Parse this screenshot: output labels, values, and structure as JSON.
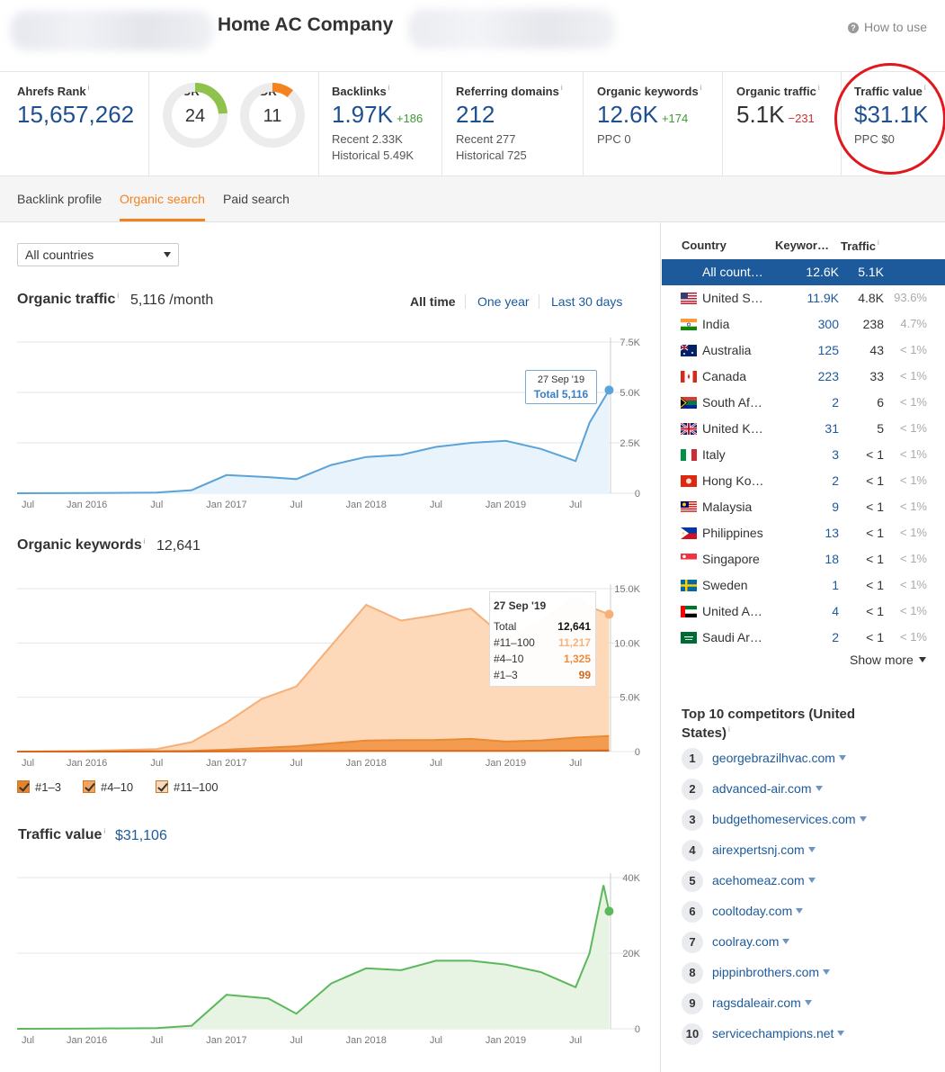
{
  "header": {
    "title": "Home AC Company",
    "how_to_use": "How to use"
  },
  "metrics": {
    "ahrefs_rank": {
      "label": "Ahrefs Rank",
      "value": "15,657,262"
    },
    "ur": {
      "label": "UR",
      "value": "24"
    },
    "dr": {
      "label": "DR",
      "value": "11"
    },
    "backlinks": {
      "label": "Backlinks",
      "value": "1.97K",
      "delta": "+186",
      "recent": "Recent 2.33K",
      "historical": "Historical 5.49K"
    },
    "ref_domains": {
      "label": "Referring domains",
      "value": "212",
      "recent": "Recent 277",
      "historical": "Historical 725"
    },
    "organic_keywords": {
      "label": "Organic keywords",
      "value": "12.6K",
      "delta": "+174",
      "ppc": "PPC 0"
    },
    "organic_traffic": {
      "label": "Organic traffic",
      "value": "5.1K",
      "delta": "−231"
    },
    "traffic_value": {
      "label": "Traffic value",
      "value": "$31.1K",
      "ppc": "PPC $0"
    }
  },
  "tabs": [
    "Backlink profile",
    "Organic search",
    "Paid search"
  ],
  "filters": {
    "country_select": "All countries",
    "time": [
      "All time",
      "One year",
      "Last 30 days"
    ]
  },
  "sections": {
    "organic_traffic": {
      "title": "Organic traffic",
      "value": "5,116 /month"
    },
    "organic_keywords": {
      "title": "Organic keywords",
      "value": "12,641"
    },
    "traffic_value": {
      "title": "Traffic value",
      "value": "$31,106"
    }
  },
  "tooltip_traffic": {
    "date": "27 Sep '19",
    "total": "Total 5,116"
  },
  "tooltip_keywords": {
    "date": "27 Sep '19",
    "rows": [
      {
        "label": "Total",
        "value": "12,641"
      },
      {
        "label": "#11–100",
        "value": "11,217"
      },
      {
        "label": "#4–10",
        "value": "1,325"
      },
      {
        "label": "#1–3",
        "value": "99"
      }
    ]
  },
  "legend": [
    "#1–3",
    "#4–10",
    "#11–100"
  ],
  "chart_data": [
    {
      "type": "area",
      "title": "Organic traffic",
      "x_ticks": [
        "Jul",
        "Jan 2016",
        "Jul",
        "Jan 2017",
        "Jul",
        "Jan 2018",
        "Jul",
        "Jan 2019",
        "Jul"
      ],
      "y_ticks": [
        "0",
        "2.5K",
        "5.0K",
        "7.5K"
      ],
      "ylim": [
        0,
        7500
      ],
      "x": [
        2015.5,
        2016.0,
        2016.5,
        2016.75,
        2017.0,
        2017.3,
        2017.5,
        2017.75,
        2018.0,
        2018.25,
        2018.5,
        2018.75,
        2019.0,
        2019.25,
        2019.5,
        2019.6,
        2019.74
      ],
      "series": [
        {
          "values": [
            0,
            10,
            30,
            150,
            900,
            800,
            700,
            1400,
            1800,
            1900,
            2300,
            2500,
            2600,
            2200,
            1600,
            3500,
            5116
          ]
        }
      ],
      "color": "#5ba3d8"
    },
    {
      "type": "area",
      "title": "Organic keywords",
      "x_ticks": [
        "Jul",
        "Jan 2016",
        "Jul",
        "Jan 2017",
        "Jul",
        "Jan 2018",
        "Jul",
        "Jan 2019",
        "Jul"
      ],
      "y_ticks": [
        "0",
        "5.0K",
        "10.0K",
        "15.0K"
      ],
      "ylim": [
        0,
        15000
      ],
      "x": [
        2015.5,
        2016.0,
        2016.5,
        2016.75,
        2017.0,
        2017.25,
        2017.5,
        2017.75,
        2018.0,
        2018.25,
        2018.5,
        2018.75,
        2019.0,
        2019.25,
        2019.5,
        2019.6,
        2019.74
      ],
      "series": [
        {
          "name": "#11–100",
          "values": [
            0,
            50,
            200,
            800,
            2500,
            4500,
            5500,
            9000,
            12500,
            11000,
            11500,
            12000,
            9500,
            11000,
            13000,
            12000,
            11217
          ]
        },
        {
          "name": "#4–10",
          "values": [
            0,
            10,
            30,
            60,
            150,
            300,
            450,
            700,
            950,
            1000,
            1000,
            1100,
            850,
            950,
            1200,
            1250,
            1325
          ]
        },
        {
          "name": "#1–3",
          "values": [
            0,
            0,
            5,
            10,
            20,
            30,
            40,
            50,
            60,
            60,
            65,
            70,
            70,
            75,
            85,
            95,
            99
          ]
        }
      ]
    },
    {
      "type": "area",
      "title": "Traffic value",
      "x_ticks": [
        "Jul",
        "Jan 2016",
        "Jul",
        "Jan 2017",
        "Jul",
        "Jan 2018",
        "Jul",
        "Jan 2019",
        "Jul"
      ],
      "y_ticks": [
        "0",
        "20K",
        "40K"
      ],
      "ylim": [
        0,
        40000
      ],
      "x": [
        2015.5,
        2016.0,
        2016.5,
        2016.75,
        2017.0,
        2017.3,
        2017.5,
        2017.75,
        2018.0,
        2018.25,
        2018.5,
        2018.75,
        2019.0,
        2019.25,
        2019.5,
        2019.6,
        2019.7,
        2019.74
      ],
      "series": [
        {
          "values": [
            0,
            50,
            200,
            800,
            9000,
            8000,
            4000,
            12000,
            16000,
            15500,
            18000,
            18000,
            17000,
            15000,
            11000,
            20000,
            38000,
            31106
          ]
        }
      ],
      "color": "#5cb85c"
    }
  ],
  "country_table": {
    "headers": [
      "Country",
      "Keywor…",
      "Traffic"
    ],
    "rows": [
      {
        "name": "All count…",
        "kw": "12.6K",
        "traffic": "5.1K",
        "pct": "",
        "flag": "none",
        "selected": true
      },
      {
        "name": "United S…",
        "kw": "11.9K",
        "traffic": "4.8K",
        "pct": "93.6%",
        "flag": "us"
      },
      {
        "name": "India",
        "kw": "300",
        "traffic": "238",
        "pct": "4.7%",
        "flag": "in"
      },
      {
        "name": "Australia",
        "kw": "125",
        "traffic": "43",
        "pct": "< 1%",
        "flag": "au"
      },
      {
        "name": "Canada",
        "kw": "223",
        "traffic": "33",
        "pct": "< 1%",
        "flag": "ca"
      },
      {
        "name": "South Af…",
        "kw": "2",
        "traffic": "6",
        "pct": "< 1%",
        "flag": "za"
      },
      {
        "name": "United K…",
        "kw": "31",
        "traffic": "5",
        "pct": "< 1%",
        "flag": "gb"
      },
      {
        "name": "Italy",
        "kw": "3",
        "traffic": "< 1",
        "pct": "< 1%",
        "flag": "it"
      },
      {
        "name": "Hong Ko…",
        "kw": "2",
        "traffic": "< 1",
        "pct": "< 1%",
        "flag": "hk"
      },
      {
        "name": "Malaysia",
        "kw": "9",
        "traffic": "< 1",
        "pct": "< 1%",
        "flag": "my"
      },
      {
        "name": "Philippines",
        "kw": "13",
        "traffic": "< 1",
        "pct": "< 1%",
        "flag": "ph"
      },
      {
        "name": "Singapore",
        "kw": "18",
        "traffic": "< 1",
        "pct": "< 1%",
        "flag": "sg"
      },
      {
        "name": "Sweden",
        "kw": "1",
        "traffic": "< 1",
        "pct": "< 1%",
        "flag": "se"
      },
      {
        "name": "United A…",
        "kw": "4",
        "traffic": "< 1",
        "pct": "< 1%",
        "flag": "ae"
      },
      {
        "name": "Saudi Ar…",
        "kw": "2",
        "traffic": "< 1",
        "pct": "< 1%",
        "flag": "sa"
      }
    ],
    "show_more": "Show more"
  },
  "competitors": {
    "title": "Top 10 competitors (United States)",
    "items": [
      {
        "num": "1",
        "domain": "georgebrazilhvac.com"
      },
      {
        "num": "2",
        "domain": "advanced-air.com"
      },
      {
        "num": "3",
        "domain": "budgethomeservices.com"
      },
      {
        "num": "4",
        "domain": "airexpertsnj.com"
      },
      {
        "num": "5",
        "domain": "acehomeaz.com"
      },
      {
        "num": "6",
        "domain": "cooltoday.com"
      },
      {
        "num": "7",
        "domain": "coolray.com"
      },
      {
        "num": "8",
        "domain": "pippinbrothers.com"
      },
      {
        "num": "9",
        "domain": "ragsdaleair.com"
      },
      {
        "num": "10",
        "domain": "servicechampions.net"
      }
    ]
  },
  "colors": {
    "accent": "#f58220",
    "link": "#1d5a9b",
    "highlight_circle": "#e0171d"
  }
}
